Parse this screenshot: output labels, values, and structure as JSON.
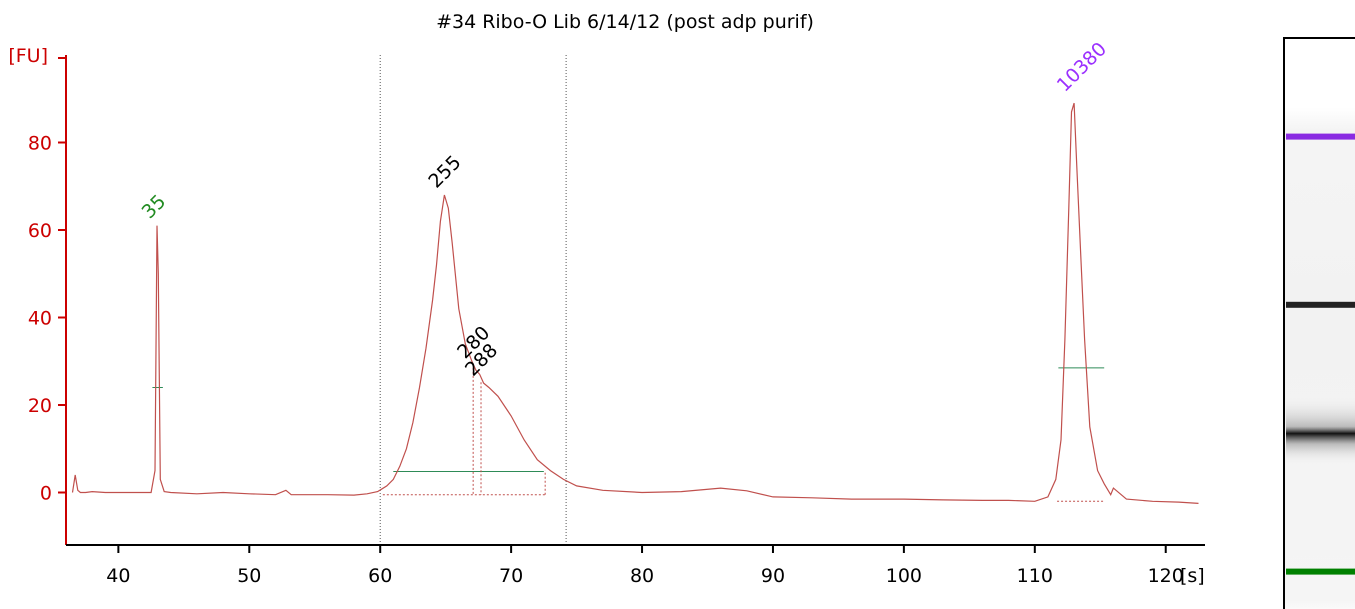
{
  "chart_data": {
    "type": "line",
    "title": "#34 Ribo-O Lib 6/14/12 (post adp purif)",
    "ylabel": "[FU]",
    "xlabel": "[s]",
    "xlim": [
      36,
      123
    ],
    "ylim": [
      -12,
      100
    ],
    "x_ticks": [
      "40",
      "50",
      "60",
      "70",
      "80",
      "90",
      "100",
      "110",
      "120"
    ],
    "y_ticks": [
      "0",
      "20",
      "40",
      "60",
      "80"
    ],
    "colors": {
      "trace": "#c0504d",
      "axis": "#cc0000",
      "marker_green": "#2e8b57",
      "lower_marker_label": "#228b22",
      "upper_marker_label": "#9b30ff",
      "sample_label": "#000000"
    },
    "series": [
      {
        "x": [
          36.5,
          36.7,
          36.9,
          37.1,
          37.5,
          38,
          39,
          40,
          41,
          42,
          42.5,
          42.8,
          42.95,
          43.05,
          43.2,
          43.5,
          44,
          46,
          48,
          50,
          52,
          52.8,
          53.2,
          54,
          56,
          58,
          59,
          59.8,
          60.5,
          61,
          61.5,
          62,
          62.5,
          63,
          63.5,
          64,
          64.3,
          64.6,
          64.9,
          65.2,
          65.5,
          66,
          66.5,
          67,
          67.3,
          67.6,
          67.9,
          68.3,
          69,
          70,
          71,
          72,
          73,
          74,
          75,
          77,
          80,
          83,
          86,
          88,
          90,
          93,
          96,
          100,
          103,
          106,
          108,
          110,
          111,
          111.6,
          112,
          112.3,
          112.6,
          112.8,
          113,
          113.2,
          113.5,
          113.8,
          114.2,
          114.8,
          115.3,
          115.8,
          116,
          117,
          119,
          121,
          122.5
        ],
        "y": [
          0,
          4,
          0.5,
          0,
          0,
          0.2,
          0,
          0,
          0,
          0,
          0,
          5,
          61,
          50,
          3,
          0.2,
          0,
          -0.3,
          0,
          -0.3,
          -0.5,
          0.5,
          -0.5,
          -0.5,
          -0.5,
          -0.6,
          -0.3,
          0.2,
          1.5,
          3,
          6,
          10,
          16,
          24,
          33,
          44,
          52,
          62,
          68,
          65,
          57,
          42,
          34,
          30,
          28,
          27,
          25,
          24,
          22,
          17.5,
          12,
          7.5,
          5,
          3,
          1.5,
          0.5,
          0,
          0.2,
          1,
          0.4,
          -1,
          -1.2,
          -1.5,
          -1.5,
          -1.7,
          -1.8,
          -1.8,
          -2,
          -1,
          3,
          12,
          35,
          65,
          87,
          89,
          75,
          55,
          35,
          15,
          5,
          2,
          -0.5,
          1,
          -1.5,
          -2,
          -2.2,
          -2.5
        ]
      }
    ],
    "peaks": [
      {
        "label": "35",
        "x": 43,
        "y": 61,
        "color": "#228b22"
      },
      {
        "label": "255",
        "x": 64.9,
        "y": 68,
        "color": "#000000"
      },
      {
        "label": "280",
        "x": 67.1,
        "y": 29,
        "color": "#000000"
      },
      {
        "label": "288",
        "x": 67.7,
        "y": 25,
        "color": "#000000"
      },
      {
        "label": "10380",
        "x": 112.9,
        "y": 90,
        "color": "#9b30ff"
      }
    ],
    "region_lines": [
      60,
      74.2
    ],
    "gel_bands": [
      {
        "position": 0.17,
        "color": "#8a2be2"
      },
      {
        "position": 0.46,
        "color": "#222222"
      },
      {
        "position": 0.92,
        "color": "#008000"
      }
    ]
  }
}
